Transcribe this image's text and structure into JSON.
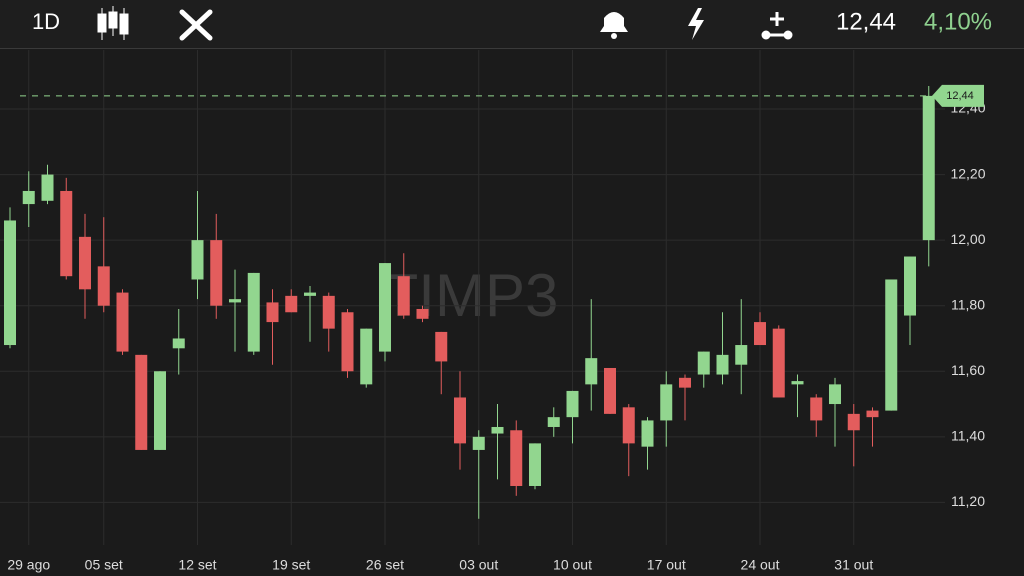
{
  "toolbar": {
    "period": "1D",
    "price": "12,44",
    "change": "4,10%"
  },
  "chart_data": {
    "type": "candlestick",
    "watermark": "TIMP3",
    "categories": [
      null,
      "29 ago",
      null,
      null,
      null,
      "05 set",
      null,
      null,
      null,
      null,
      "12 set",
      null,
      null,
      null,
      null,
      "19 set",
      null,
      null,
      null,
      null,
      "26 set",
      null,
      null,
      null,
      null,
      "03 out",
      null,
      null,
      null,
      null,
      "10 out",
      null,
      null,
      null,
      null,
      "17 out",
      null,
      null,
      null,
      null,
      "24 out",
      null,
      null,
      null,
      null,
      "31 out",
      null,
      null,
      null,
      null
    ],
    "open": [
      11.68,
      12.11,
      12.12,
      12.15,
      12.01,
      11.92,
      11.84,
      11.65,
      11.36,
      11.67,
      11.88,
      12.0,
      11.81,
      11.66,
      11.81,
      11.83,
      11.83,
      11.83,
      11.78,
      11.56,
      11.66,
      11.89,
      11.79,
      11.72,
      11.52,
      11.36,
      11.41,
      11.42,
      11.25,
      11.43,
      11.46,
      11.56,
      11.61,
      11.49,
      11.37,
      11.45,
      11.58,
      11.59,
      11.59,
      11.62,
      11.75,
      11.73,
      11.56,
      11.52,
      11.5,
      11.47,
      11.48,
      11.48,
      11.77,
      12.0
    ],
    "high": [
      12.1,
      12.21,
      12.23,
      12.19,
      12.08,
      12.07,
      11.85,
      11.65,
      11.6,
      11.79,
      12.15,
      12.08,
      11.91,
      11.9,
      11.85,
      11.85,
      11.86,
      11.84,
      11.79,
      11.73,
      11.93,
      11.96,
      11.8,
      11.72,
      11.6,
      11.42,
      11.5,
      11.45,
      11.38,
      11.49,
      11.54,
      11.82,
      11.61,
      11.5,
      11.46,
      11.6,
      11.59,
      11.66,
      11.78,
      11.82,
      11.78,
      11.74,
      11.59,
      11.53,
      11.58,
      11.5,
      11.49,
      11.88,
      11.95,
      12.47
    ],
    "low": [
      11.67,
      12.04,
      12.11,
      11.88,
      11.76,
      11.78,
      11.65,
      11.36,
      11.36,
      11.59,
      11.82,
      11.76,
      11.66,
      11.65,
      11.62,
      11.78,
      11.69,
      11.66,
      11.58,
      11.55,
      11.63,
      11.76,
      11.75,
      11.53,
      11.3,
      11.15,
      11.27,
      11.22,
      11.24,
      11.4,
      11.38,
      11.48,
      11.47,
      11.28,
      11.3,
      11.37,
      11.45,
      11.55,
      11.56,
      11.53,
      11.68,
      11.52,
      11.46,
      11.4,
      11.37,
      11.31,
      11.37,
      11.48,
      11.68,
      11.92
    ],
    "close": [
      12.06,
      12.15,
      12.2,
      11.89,
      11.85,
      11.8,
      11.66,
      11.36,
      11.6,
      11.7,
      12.0,
      11.8,
      11.82,
      11.9,
      11.75,
      11.78,
      11.84,
      11.73,
      11.6,
      11.73,
      11.93,
      11.77,
      11.76,
      11.63,
      11.38,
      11.4,
      11.43,
      11.25,
      11.38,
      11.46,
      11.54,
      11.64,
      11.47,
      11.38,
      11.45,
      11.56,
      11.55,
      11.66,
      11.65,
      11.68,
      11.68,
      11.52,
      11.57,
      11.45,
      11.56,
      11.42,
      11.46,
      11.88,
      11.95,
      12.44
    ],
    "up_color": "#92d68f",
    "down_color": "#e35d5d",
    "ylim": [
      11.07,
      12.58
    ],
    "yticks": [
      {
        "value": 11.2,
        "label": "11,20"
      },
      {
        "value": 11.4,
        "label": "11,40"
      },
      {
        "value": 11.6,
        "label": "11,60"
      },
      {
        "value": 11.8,
        "label": "11,80"
      },
      {
        "value": 12.0,
        "label": "12,00"
      },
      {
        "value": 12.2,
        "label": "12,20"
      },
      {
        "value": 12.4,
        "label": "12,40"
      }
    ],
    "last_price": {
      "value": 12.44,
      "label": "12,44"
    },
    "grid": true
  }
}
